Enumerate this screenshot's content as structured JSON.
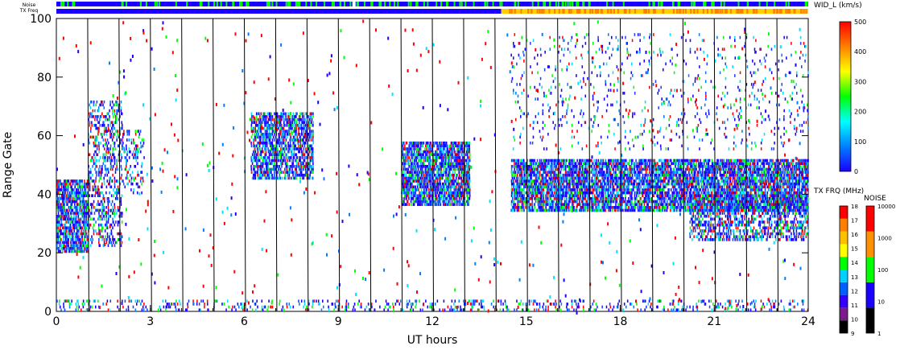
{
  "header": {
    "noise_label": "Noise",
    "txfreq_label": "TX Freq"
  },
  "chart_data": {
    "type": "heatmap",
    "xlabel": "UT hours",
    "ylabel": "Range Gate",
    "xlim": [
      0,
      24
    ],
    "ylim": [
      0,
      100
    ],
    "x_ticks": [
      "0",
      "3",
      "6",
      "9",
      "12",
      "15",
      "18",
      "21",
      "24"
    ],
    "y_ticks": [
      "0",
      "20",
      "40",
      "60",
      "80",
      "100"
    ],
    "scan_lines_hours": [
      1,
      2,
      3,
      4,
      5,
      6,
      7,
      8,
      9,
      10,
      11,
      12,
      13,
      14,
      15,
      16,
      17,
      18,
      19,
      20,
      21,
      22,
      23
    ],
    "data_gap_hours": [
      9.5,
      9.5
    ],
    "echo_regions": [
      {
        "x": [
          0.0,
          1.0
        ],
        "y": [
          20,
          45
        ],
        "density": 0.8
      },
      {
        "x": [
          1.0,
          2.1
        ],
        "y": [
          22,
          72
        ],
        "density": 0.35
      },
      {
        "x": [
          2.1,
          2.8
        ],
        "y": [
          40,
          62
        ],
        "density": 0.25
      },
      {
        "x": [
          6.2,
          8.2
        ],
        "y": [
          45,
          68
        ],
        "density": 0.7
      },
      {
        "x": [
          11.0,
          13.2
        ],
        "y": [
          36,
          58
        ],
        "density": 0.8
      },
      {
        "x": [
          14.5,
          24.0
        ],
        "y": [
          34,
          52
        ],
        "density": 0.8
      },
      {
        "x": [
          20.2,
          24.0
        ],
        "y": [
          24,
          40
        ],
        "density": 0.5
      },
      {
        "x": [
          14.5,
          24.0
        ],
        "y": [
          55,
          95
        ],
        "density": 0.06
      },
      {
        "x": [
          0.0,
          24.0
        ],
        "y": [
          0,
          4
        ],
        "density": 0.2
      }
    ],
    "colorbar_width": {
      "title": "WID_L (km/s)",
      "ticks": [
        "0",
        "100",
        "200",
        "300",
        "400",
        "500"
      ],
      "range": [
        0,
        500
      ],
      "colors": [
        "#1a00ff",
        "#0080ff",
        "#00ffff",
        "#00ff00",
        "#ffff00",
        "#ff8000",
        "#ff0000"
      ]
    },
    "colorbar_txfreq": {
      "title": "TX FRQ (MHz)",
      "ticks": [
        "9",
        "10",
        "11",
        "12",
        "13",
        "14",
        "15",
        "16",
        "17",
        "18"
      ],
      "colors": [
        "#000000",
        "#7a1a8c",
        "#3300ff",
        "#0060ff",
        "#00d0ff",
        "#00ff00",
        "#ffff00",
        "#ffc000",
        "#ff8000",
        "#ff0000"
      ]
    },
    "colorbar_noise": {
      "title": "NOISE",
      "ticks": [
        "1",
        "10",
        "100",
        "1000",
        "10000"
      ],
      "colors": [
        "#000000",
        "#1a00ff",
        "#00ff00",
        "#ff9000",
        "#ff0000"
      ]
    },
    "noise_bar": {
      "base_color": "#1a00ff",
      "speckle_color": "#00ff00"
    },
    "txfreq_bar": [
      {
        "from_hour": 0,
        "to_hour": 14.2,
        "color": "#1a00ff"
      },
      {
        "from_hour": 14.2,
        "to_hour": 24,
        "color": "#ffd000"
      }
    ]
  }
}
